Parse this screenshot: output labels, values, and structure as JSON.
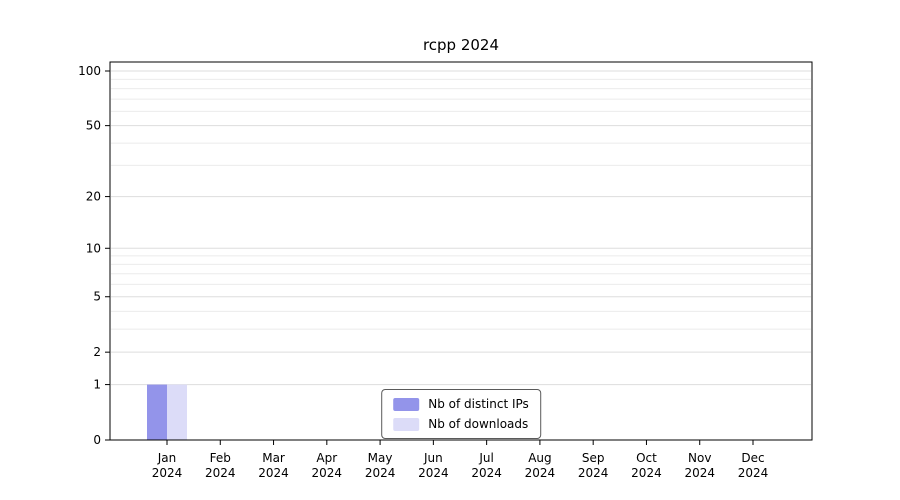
{
  "title": "rcpp 2024",
  "chart_data": {
    "type": "bar",
    "title": "rcpp 2024",
    "categories": [
      {
        "label": "Jan",
        "sublabel": "2024"
      },
      {
        "label": "Feb",
        "sublabel": "2024"
      },
      {
        "label": "Mar",
        "sublabel": "2024"
      },
      {
        "label": "Apr",
        "sublabel": "2024"
      },
      {
        "label": "May",
        "sublabel": "2024"
      },
      {
        "label": "Jun",
        "sublabel": "2024"
      },
      {
        "label": "Jul",
        "sublabel": "2024"
      },
      {
        "label": "Aug",
        "sublabel": "2024"
      },
      {
        "label": "Sep",
        "sublabel": "2024"
      },
      {
        "label": "Oct",
        "sublabel": "2024"
      },
      {
        "label": "Nov",
        "sublabel": "2024"
      },
      {
        "label": "Dec",
        "sublabel": "2024"
      }
    ],
    "series": [
      {
        "name": "Nb of distinct IPs",
        "color": "#9394ea",
        "values": [
          1,
          0,
          0,
          0,
          0,
          0,
          0,
          0,
          0,
          0,
          0,
          0
        ]
      },
      {
        "name": "Nb of downloads",
        "color": "#dcdcf8",
        "values": [
          1,
          0,
          0,
          0,
          0,
          0,
          0,
          0,
          0,
          0,
          0,
          0
        ]
      }
    ],
    "y_axis": {
      "scale": "log1p",
      "tick_labels": [
        "0",
        "1",
        "2",
        "5",
        "10",
        "20",
        "50",
        "100"
      ],
      "tick_values": [
        0,
        1,
        2,
        5,
        10,
        20,
        50,
        100
      ],
      "minor_gridlines": [
        1,
        2,
        3,
        4,
        5,
        6,
        7,
        8,
        9,
        10,
        20,
        30,
        40,
        50,
        60,
        70,
        80,
        90,
        100
      ],
      "max": 100
    },
    "xlabel": "",
    "ylabel": "",
    "grid": true,
    "legend_position": "bottom-center",
    "colors": {
      "gridline": "#ebebeb",
      "gridline_major": "#dddddd",
      "axis": "#000000",
      "background": "#ffffff",
      "text": "#000000"
    }
  }
}
